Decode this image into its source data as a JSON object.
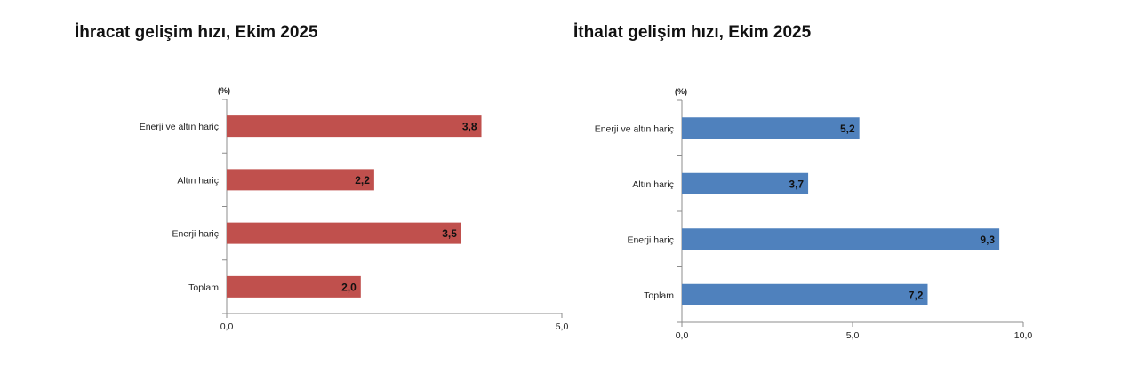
{
  "chart_data": [
    {
      "type": "bar",
      "orientation": "horizontal",
      "title": "İhracat gelişim hızı, Ekim 2025",
      "unit_label": "(%)",
      "categories": [
        "Enerji ve altın hariç",
        "Altın hariç",
        "Enerji hariç",
        "Toplam"
      ],
      "values": [
        3.8,
        2.2,
        3.5,
        2.0
      ],
      "value_labels": [
        "3,8",
        "2,2",
        "3,5",
        "2,0"
      ],
      "xlim": [
        0,
        5
      ],
      "ticks": [
        0,
        5
      ],
      "tick_labels": [
        "0,0",
        "5,0"
      ],
      "color": "#c0504d",
      "grid": false
    },
    {
      "type": "bar",
      "orientation": "horizontal",
      "title": "İthalat gelişim hızı, Ekim 2025",
      "unit_label": "(%)",
      "categories": [
        "Enerji ve altın hariç",
        "Altın hariç",
        "Enerji hariç",
        "Toplam"
      ],
      "values": [
        5.2,
        3.7,
        9.3,
        7.2
      ],
      "value_labels": [
        "5,2",
        "3,7",
        "9,3",
        "7,2"
      ],
      "xlim": [
        0,
        10
      ],
      "ticks": [
        0,
        5,
        10
      ],
      "tick_labels": [
        "0,0",
        "5,0",
        "10,0"
      ],
      "color": "#4f81bd",
      "grid": false
    }
  ]
}
